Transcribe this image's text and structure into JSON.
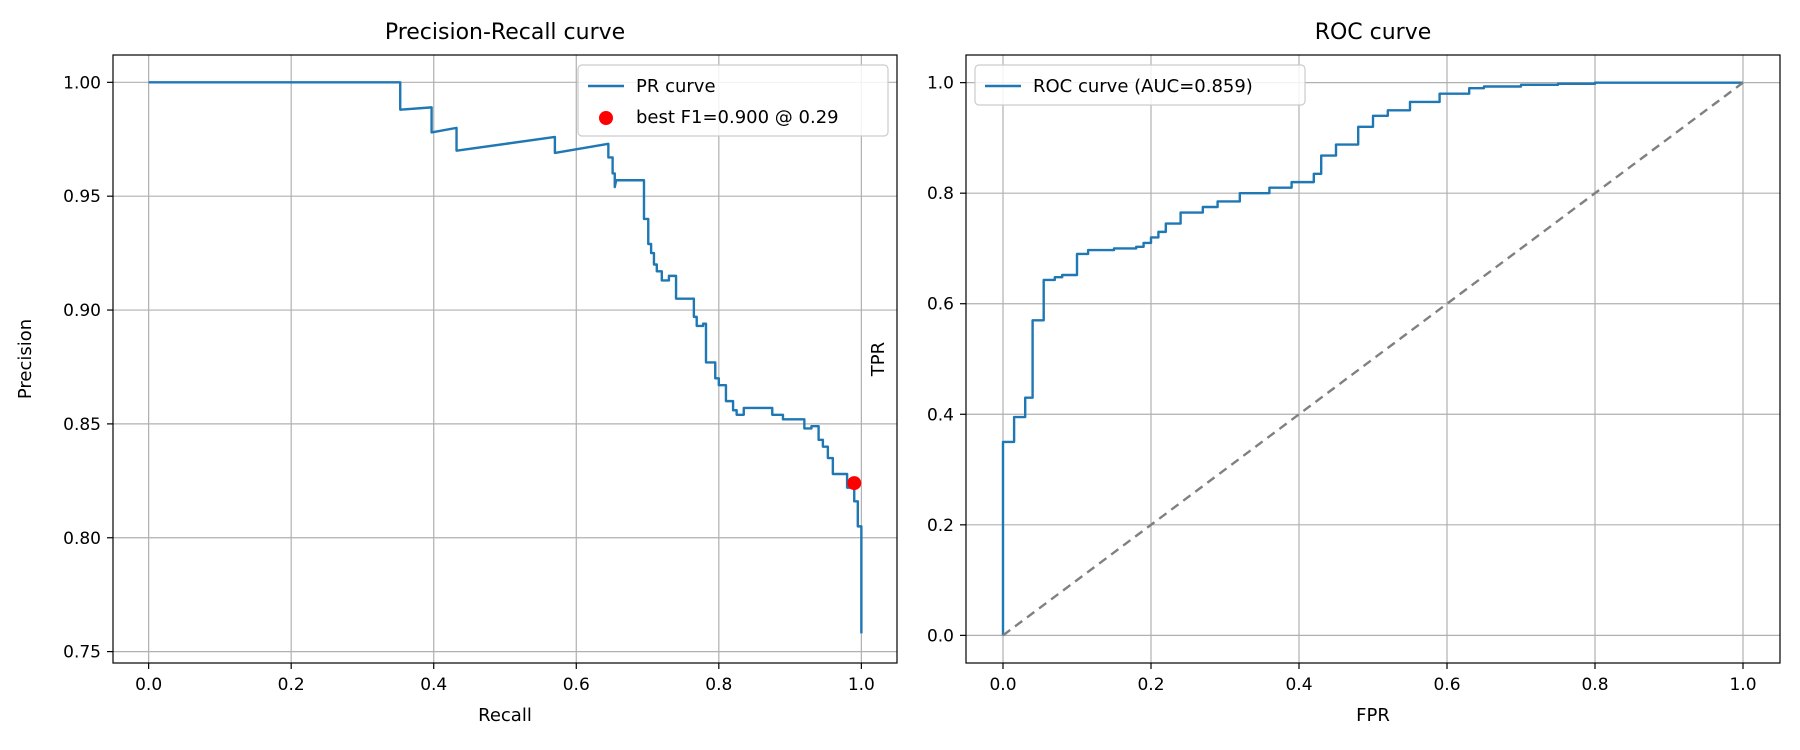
{
  "chart_data": [
    {
      "type": "line",
      "title": "Precision-Recall curve",
      "xlabel": "Recall",
      "ylabel": "Precision",
      "xlim": [
        -0.05,
        1.05
      ],
      "ylim": [
        0.745,
        1.012
      ],
      "xticks": [
        0.0,
        0.2,
        0.4,
        0.6,
        0.8,
        1.0
      ],
      "xtick_labels": [
        "0.0",
        "0.2",
        "0.4",
        "0.6",
        "0.8",
        "1.0"
      ],
      "yticks": [
        0.75,
        0.8,
        0.85,
        0.9,
        0.95,
        1.0
      ],
      "ytick_labels": [
        "0.75",
        "0.80",
        "0.85",
        "0.90",
        "0.95",
        "1.00"
      ],
      "grid": true,
      "legend_position": "top-right",
      "series": [
        {
          "name": "PR curve",
          "color": "#1f77b4",
          "style": "solid",
          "x": [
            0.0,
            0.353,
            0.353,
            0.397,
            0.397,
            0.432,
            0.432,
            0.57,
            0.57,
            0.645,
            0.645,
            0.651,
            0.651,
            0.654,
            0.654,
            0.656,
            0.656,
            0.695,
            0.695,
            0.701,
            0.701,
            0.705,
            0.705,
            0.709,
            0.709,
            0.713,
            0.713,
            0.72,
            0.72,
            0.73,
            0.73,
            0.74,
            0.74,
            0.765,
            0.765,
            0.769,
            0.769,
            0.778,
            0.778,
            0.782,
            0.782,
            0.795,
            0.795,
            0.8,
            0.8,
            0.81,
            0.81,
            0.815,
            0.815,
            0.82,
            0.82,
            0.825,
            0.825,
            0.835,
            0.835,
            0.875,
            0.875,
            0.89,
            0.89,
            0.92,
            0.92,
            0.93,
            0.93,
            0.94,
            0.94,
            0.946,
            0.946,
            0.953,
            0.953,
            0.96,
            0.96,
            0.98,
            0.98,
            0.99,
            0.99,
            0.995,
            0.995,
            1.0,
            1.0
          ],
          "y": [
            1.0,
            1.0,
            0.988,
            0.989,
            0.978,
            0.98,
            0.97,
            0.976,
            0.969,
            0.973,
            0.967,
            0.967,
            0.96,
            0.96,
            0.954,
            0.957,
            0.957,
            0.957,
            0.94,
            0.94,
            0.929,
            0.929,
            0.925,
            0.925,
            0.92,
            0.92,
            0.917,
            0.917,
            0.913,
            0.913,
            0.915,
            0.915,
            0.905,
            0.905,
            0.897,
            0.897,
            0.893,
            0.893,
            0.894,
            0.894,
            0.877,
            0.877,
            0.87,
            0.87,
            0.867,
            0.867,
            0.86,
            0.86,
            0.86,
            0.86,
            0.856,
            0.856,
            0.854,
            0.854,
            0.857,
            0.857,
            0.854,
            0.854,
            0.852,
            0.852,
            0.848,
            0.848,
            0.849,
            0.849,
            0.843,
            0.843,
            0.84,
            0.84,
            0.835,
            0.835,
            0.828,
            0.828,
            0.822,
            0.822,
            0.816,
            0.816,
            0.805,
            0.805,
            0.758
          ]
        },
        {
          "name": "best F1=0.900 @ 0.29",
          "type": "scatter",
          "color": "#ff0000",
          "x": [
            0.99
          ],
          "y": [
            0.824
          ]
        }
      ]
    },
    {
      "type": "line",
      "title": "ROC curve",
      "xlabel": "FPR",
      "ylabel": "TPR",
      "xlim": [
        -0.05,
        1.05
      ],
      "ylim": [
        -0.05,
        1.05
      ],
      "xticks": [
        0.0,
        0.2,
        0.4,
        0.6,
        0.8,
        1.0
      ],
      "xtick_labels": [
        "0.0",
        "0.2",
        "0.4",
        "0.6",
        "0.8",
        "1.0"
      ],
      "yticks": [
        0.0,
        0.2,
        0.4,
        0.6,
        0.8,
        1.0
      ],
      "ytick_labels": [
        "0.0",
        "0.2",
        "0.4",
        "0.6",
        "0.8",
        "1.0"
      ],
      "grid": true,
      "legend_position": "top-left",
      "series": [
        {
          "name": "ROC curve (AUC=0.859)",
          "color": "#1f77b4",
          "style": "solid",
          "x": [
            0.0,
            0.0,
            0.015,
            0.015,
            0.03,
            0.03,
            0.04,
            0.04,
            0.055,
            0.055,
            0.07,
            0.07,
            0.08,
            0.08,
            0.1,
            0.1,
            0.115,
            0.115,
            0.15,
            0.15,
            0.18,
            0.18,
            0.19,
            0.19,
            0.2,
            0.2,
            0.21,
            0.21,
            0.22,
            0.22,
            0.24,
            0.24,
            0.27,
            0.27,
            0.29,
            0.29,
            0.32,
            0.32,
            0.36,
            0.36,
            0.39,
            0.39,
            0.42,
            0.42,
            0.43,
            0.43,
            0.45,
            0.45,
            0.48,
            0.48,
            0.5,
            0.5,
            0.52,
            0.52,
            0.55,
            0.55,
            0.59,
            0.59,
            0.63,
            0.63,
            0.65,
            0.65,
            0.7,
            0.7,
            0.75,
            0.75,
            0.8,
            0.8,
            1.0
          ],
          "y": [
            0.0,
            0.35,
            0.35,
            0.395,
            0.395,
            0.43,
            0.43,
            0.57,
            0.57,
            0.643,
            0.643,
            0.648,
            0.648,
            0.652,
            0.652,
            0.69,
            0.69,
            0.697,
            0.697,
            0.7,
            0.7,
            0.703,
            0.703,
            0.71,
            0.71,
            0.72,
            0.72,
            0.73,
            0.73,
            0.745,
            0.745,
            0.765,
            0.765,
            0.775,
            0.775,
            0.785,
            0.785,
            0.8,
            0.8,
            0.81,
            0.81,
            0.82,
            0.82,
            0.835,
            0.835,
            0.868,
            0.868,
            0.888,
            0.888,
            0.92,
            0.92,
            0.94,
            0.94,
            0.95,
            0.95,
            0.965,
            0.965,
            0.98,
            0.98,
            0.99,
            0.99,
            0.993,
            0.993,
            0.996,
            0.996,
            0.998,
            0.998,
            1.0,
            1.0
          ]
        },
        {
          "name": "",
          "color": "#808080",
          "style": "dashed",
          "x": [
            0.0,
            1.0
          ],
          "y": [
            0.0,
            1.0
          ]
        }
      ]
    }
  ]
}
